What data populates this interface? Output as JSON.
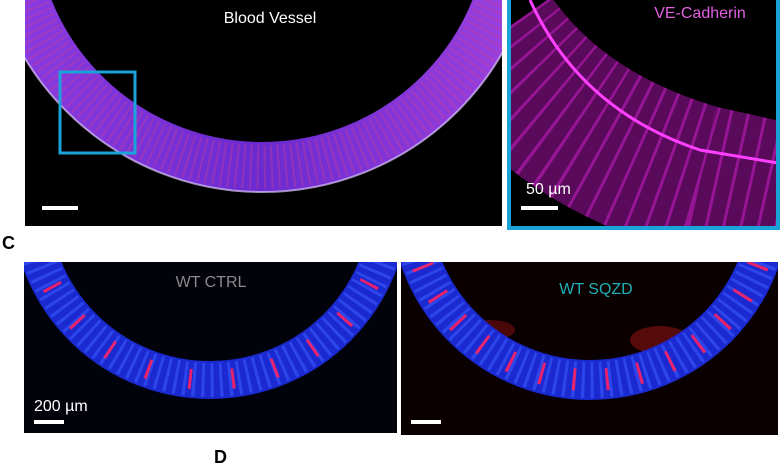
{
  "panel_b": {
    "main_label": "Blood Vessel",
    "inset_label": "VE-Cadherin",
    "inset_scale": "50 µm"
  },
  "panel_c": {
    "letter": "C",
    "left_label": "WT CTRL",
    "right_label": "WT SQZD",
    "scale": "200 µm"
  },
  "panel_d": {
    "letter": "D"
  }
}
